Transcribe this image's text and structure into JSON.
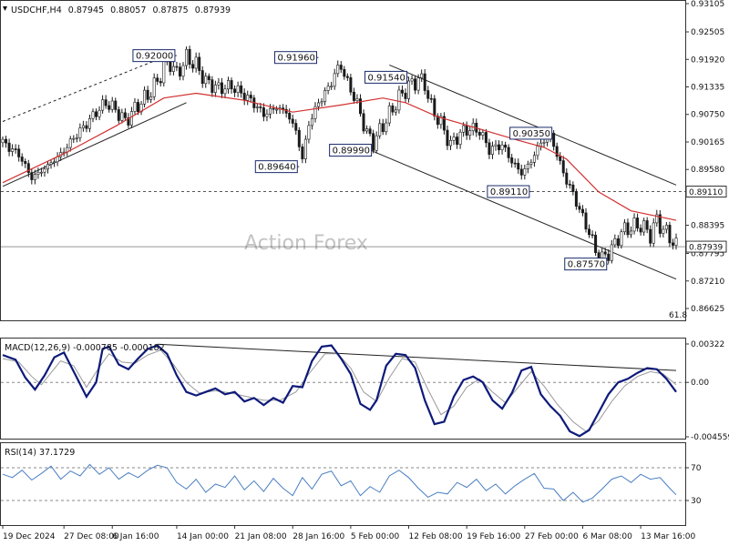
{
  "chart_data": {
    "type": "candlestick",
    "price_panel": {
      "header": {
        "symbol": "USDCHF,H4",
        "open": "0.87945",
        "high": "0.88057",
        "low": "0.87875",
        "close": "0.87939"
      },
      "watermark": "Action Forex",
      "ylim": [
        0.86625,
        0.93105
      ],
      "y_ticks": [
        "0.93105",
        "0.92505",
        "0.91920",
        "0.91335",
        "0.90750",
        "0.90165",
        "0.89580",
        "0.88395",
        "0.87795",
        "0.87210",
        "0.86625"
      ],
      "price_tags": [
        {
          "label": "0.89110",
          "value": 0.8911,
          "style": "dashed"
        },
        {
          "label": "0.87939",
          "value": 0.87939,
          "style": "solid"
        }
      ],
      "fib_label": "61.8",
      "callouts": [
        {
          "label": "0.92000",
          "value": 0.92
        },
        {
          "label": "0.91960",
          "value": 0.9196
        },
        {
          "label": "0.91540",
          "value": 0.9154
        },
        {
          "label": "0.89640",
          "value": 0.8964
        },
        {
          "label": "0.89990",
          "value": 0.8999
        },
        {
          "label": "0.90350",
          "value": 0.9035
        },
        {
          "label": "0.89110",
          "value": 0.8911
        },
        {
          "label": "0.87570",
          "value": 0.8757
        }
      ],
      "close_path": [
        [
          0,
          0.9015
        ],
        [
          5,
          0.899
        ],
        [
          9,
          0.894
        ],
        [
          13,
          0.896
        ],
        [
          18,
          0.899
        ],
        [
          22,
          0.9025
        ],
        [
          26,
          0.9055
        ],
        [
          29,
          0.908
        ],
        [
          32,
          0.91
        ],
        [
          35,
          0.9085
        ],
        [
          38,
          0.906
        ],
        [
          42,
          0.9095
        ],
        [
          45,
          0.9115
        ],
        [
          48,
          0.9145
        ],
        [
          50,
          0.9175
        ],
        [
          52,
          0.9185
        ],
        [
          54,
          0.916
        ],
        [
          57,
          0.9195
        ],
        [
          60,
          0.918
        ],
        [
          63,
          0.9145
        ],
        [
          67,
          0.913
        ],
        [
          71,
          0.9135
        ],
        [
          74,
          0.912
        ],
        [
          77,
          0.9105
        ],
        [
          81,
          0.9075
        ],
        [
          85,
          0.909
        ],
        [
          88,
          0.908
        ],
        [
          91,
          0.904
        ],
        [
          93,
          0.898
        ],
        [
          95,
          0.9055
        ],
        [
          98,
          0.91
        ],
        [
          101,
          0.913
        ],
        [
          103,
          0.916
        ],
        [
          105,
          0.918
        ],
        [
          107,
          0.914
        ],
        [
          109,
          0.9115
        ],
        [
          111,
          0.9075
        ],
        [
          113,
          0.9035
        ],
        [
          115,
          0.9015
        ],
        [
          117,
          0.904
        ],
        [
          120,
          0.9075
        ],
        [
          123,
          0.911
        ],
        [
          126,
          0.9135
        ],
        [
          129,
          0.915
        ],
        [
          131,
          0.914
        ],
        [
          133,
          0.909
        ],
        [
          136,
          0.9055
        ],
        [
          139,
          0.901
        ],
        [
          142,
          0.9035
        ],
        [
          145,
          0.9045
        ],
        [
          148,
          0.904
        ],
        [
          151,
          0.9
        ],
        [
          155,
          0.901
        ],
        [
          158,
          0.8975
        ],
        [
          161,
          0.895
        ],
        [
          164,
          0.8975
        ],
        [
          166,
          0.9005
        ],
        [
          168,
          0.902
        ],
        [
          170,
          0.903
        ],
        [
          172,
          0.899
        ],
        [
          174,
          0.895
        ],
        [
          176,
          0.892
        ],
        [
          178,
          0.889
        ],
        [
          180,
          0.8855
        ],
        [
          182,
          0.8825
        ],
        [
          184,
          0.8785
        ],
        [
          186,
          0.877
        ],
        [
          188,
          0.878
        ],
        [
          190,
          0.88
        ],
        [
          192,
          0.8825
        ],
        [
          195,
          0.8835
        ],
        [
          198,
          0.884
        ],
        [
          201,
          0.882
        ],
        [
          203,
          0.885
        ],
        [
          205,
          0.883
        ],
        [
          207,
          0.8815
        ],
        [
          209,
          0.8794
        ]
      ],
      "ema55": [
        [
          0,
          0.893
        ],
        [
          20,
          0.8995
        ],
        [
          35,
          0.905
        ],
        [
          50,
          0.911
        ],
        [
          60,
          0.912
        ],
        [
          75,
          0.9105
        ],
        [
          90,
          0.908
        ],
        [
          105,
          0.9095
        ],
        [
          118,
          0.911
        ],
        [
          125,
          0.91
        ],
        [
          135,
          0.907
        ],
        [
          150,
          0.904
        ],
        [
          160,
          0.902
        ],
        [
          168,
          0.9005
        ],
        [
          175,
          0.898
        ],
        [
          185,
          0.891
        ],
        [
          195,
          0.887
        ],
        [
          209,
          0.885
        ]
      ]
    },
    "macd_panel": {
      "header": "MACD(12,26,9) -0.000785 -0.000182",
      "ylim": [
        -0.004559,
        0.00322
      ],
      "y_ticks": [
        "0.00322",
        "0.00",
        "-0.004559"
      ],
      "macd": [
        [
          0,
          0.0023
        ],
        [
          4,
          0.0019
        ],
        [
          7,
          0.0004
        ],
        [
          10,
          -0.0006
        ],
        [
          13,
          0.0006
        ],
        [
          16,
          0.0021
        ],
        [
          19,
          0.0025
        ],
        [
          23,
          0.0004
        ],
        [
          26,
          -0.0012
        ],
        [
          29,
          0.0
        ],
        [
          31,
          0.0028
        ],
        [
          33,
          0.003
        ],
        [
          36,
          0.0015
        ],
        [
          39,
          0.0011
        ],
        [
          42,
          0.002
        ],
        [
          45,
          0.0028
        ],
        [
          48,
          0.0031
        ],
        [
          51,
          0.0024
        ],
        [
          54,
          0.0006
        ],
        [
          57,
          -0.0008
        ],
        [
          60,
          -0.0011
        ],
        [
          63,
          -0.0008
        ],
        [
          66,
          -0.0005
        ],
        [
          69,
          -0.001
        ],
        [
          72,
          -0.0008
        ],
        [
          75,
          -0.0016
        ],
        [
          78,
          -0.0013
        ],
        [
          81,
          -0.0019
        ],
        [
          84,
          -0.0013
        ],
        [
          87,
          -0.0017
        ],
        [
          90,
          -0.0003
        ],
        [
          93,
          -0.0004
        ],
        [
          96,
          0.0018
        ],
        [
          99,
          0.003
        ],
        [
          102,
          0.0031
        ],
        [
          105,
          0.002
        ],
        [
          108,
          0.0007
        ],
        [
          111,
          -0.0018
        ],
        [
          114,
          -0.0023
        ],
        [
          116,
          -0.0015
        ],
        [
          119,
          0.0014
        ],
        [
          122,
          0.0024
        ],
        [
          125,
          0.0023
        ],
        [
          128,
          0.0012
        ],
        [
          131,
          -0.0015
        ],
        [
          134,
          -0.0035
        ],
        [
          137,
          -0.0033
        ],
        [
          140,
          -0.0012
        ],
        [
          143,
          0.0002
        ],
        [
          146,
          0.0005
        ],
        [
          149,
          0.0
        ],
        [
          152,
          -0.0015
        ],
        [
          155,
          -0.0022
        ],
        [
          158,
          -0.0009
        ],
        [
          161,
          0.001
        ],
        [
          164,
          0.0013
        ],
        [
          167,
          -0.001
        ],
        [
          170,
          -0.002
        ],
        [
          173,
          -0.0028
        ],
        [
          176,
          -0.0041
        ],
        [
          179,
          -0.0045
        ],
        [
          182,
          -0.004
        ],
        [
          185,
          -0.0025
        ],
        [
          188,
          -0.001
        ],
        [
          191,
          0.0
        ],
        [
          194,
          0.0003
        ],
        [
          197,
          0.0008
        ],
        [
          200,
          0.0012
        ],
        [
          203,
          0.0011
        ],
        [
          206,
          0.0003
        ],
        [
          209,
          -0.0008
        ]
      ],
      "signal": [
        [
          0,
          0.002
        ],
        [
          5,
          0.0017
        ],
        [
          9,
          0.0005
        ],
        [
          12,
          -0.0002
        ],
        [
          15,
          0.0008
        ],
        [
          18,
          0.0018
        ],
        [
          22,
          0.0014
        ],
        [
          26,
          -0.0004
        ],
        [
          30,
          0.0013
        ],
        [
          33,
          0.0024
        ],
        [
          37,
          0.0017
        ],
        [
          41,
          0.0016
        ],
        [
          45,
          0.0023
        ],
        [
          49,
          0.0027
        ],
        [
          53,
          0.0015
        ],
        [
          57,
          0.0
        ],
        [
          61,
          -0.0009
        ],
        [
          66,
          -0.0007
        ],
        [
          71,
          -0.0009
        ],
        [
          76,
          -0.0012
        ],
        [
          81,
          -0.0015
        ],
        [
          86,
          -0.0015
        ],
        [
          91,
          -0.0008
        ],
        [
          95,
          0.0007
        ],
        [
          100,
          0.0024
        ],
        [
          104,
          0.0024
        ],
        [
          108,
          0.0012
        ],
        [
          112,
          -0.0008
        ],
        [
          116,
          -0.0016
        ],
        [
          120,
          0.0004
        ],
        [
          124,
          0.002
        ],
        [
          128,
          0.0017
        ],
        [
          132,
          -0.0006
        ],
        [
          136,
          -0.0027
        ],
        [
          140,
          -0.002
        ],
        [
          144,
          -0.0004
        ],
        [
          148,
          0.0003
        ],
        [
          152,
          -0.0008
        ],
        [
          156,
          -0.0017
        ],
        [
          160,
          -0.0004
        ],
        [
          164,
          0.0009
        ],
        [
          168,
          -0.0003
        ],
        [
          172,
          -0.0018
        ],
        [
          177,
          -0.0033
        ],
        [
          181,
          -0.0041
        ],
        [
          185,
          -0.0032
        ],
        [
          189,
          -0.0016
        ],
        [
          193,
          -0.0003
        ],
        [
          197,
          0.0005
        ],
        [
          201,
          0.0009
        ],
        [
          205,
          0.0007
        ],
        [
          209,
          -0.0002
        ]
      ]
    },
    "rsi_panel": {
      "header": "RSI(14) 37.1729",
      "ylim": [
        0,
        100
      ],
      "y_ticks": [
        "70",
        "30"
      ],
      "rsi": [
        [
          0,
          62
        ],
        [
          3,
          58
        ],
        [
          6,
          67
        ],
        [
          9,
          55
        ],
        [
          12,
          63
        ],
        [
          15,
          72
        ],
        [
          18,
          56
        ],
        [
          21,
          66
        ],
        [
          24,
          60
        ],
        [
          27,
          74
        ],
        [
          30,
          62
        ],
        [
          33,
          70
        ],
        [
          36,
          56
        ],
        [
          39,
          64
        ],
        [
          42,
          58
        ],
        [
          45,
          67
        ],
        [
          48,
          73
        ],
        [
          51,
          70
        ],
        [
          54,
          52
        ],
        [
          57,
          44
        ],
        [
          60,
          56
        ],
        [
          63,
          40
        ],
        [
          66,
          50
        ],
        [
          69,
          46
        ],
        [
          72,
          60
        ],
        [
          75,
          43
        ],
        [
          78,
          54
        ],
        [
          81,
          41
        ],
        [
          84,
          57
        ],
        [
          87,
          45
        ],
        [
          90,
          36
        ],
        [
          93,
          58
        ],
        [
          96,
          44
        ],
        [
          99,
          62
        ],
        [
          102,
          66
        ],
        [
          105,
          48
        ],
        [
          108,
          54
        ],
        [
          111,
          36
        ],
        [
          114,
          47
        ],
        [
          117,
          40
        ],
        [
          120,
          60
        ],
        [
          123,
          67
        ],
        [
          126,
          58
        ],
        [
          129,
          45
        ],
        [
          132,
          34
        ],
        [
          135,
          40
        ],
        [
          138,
          38
        ],
        [
          141,
          52
        ],
        [
          144,
          46
        ],
        [
          147,
          56
        ],
        [
          150,
          42
        ],
        [
          153,
          50
        ],
        [
          156,
          38
        ],
        [
          159,
          48
        ],
        [
          162,
          56
        ],
        [
          165,
          63
        ],
        [
          168,
          45
        ],
        [
          171,
          44
        ],
        [
          174,
          30
        ],
        [
          177,
          40
        ],
        [
          180,
          28
        ],
        [
          183,
          33
        ],
        [
          186,
          44
        ],
        [
          189,
          56
        ],
        [
          192,
          60
        ],
        [
          195,
          52
        ],
        [
          198,
          62
        ],
        [
          201,
          56
        ],
        [
          204,
          58
        ],
        [
          207,
          45
        ],
        [
          209,
          37
        ]
      ]
    },
    "x_ticks": [
      {
        "label": "19 Dec 2024",
        "i": 0
      },
      {
        "label": "27 Dec 08:00",
        "i": 19
      },
      {
        "label": "6 Jan 16:00",
        "i": 34
      },
      {
        "label": "14 Jan 00:00",
        "i": 54
      },
      {
        "label": "21 Jan 08:00",
        "i": 72
      },
      {
        "label": "28 Jan 16:00",
        "i": 90
      },
      {
        "label": "5 Feb 00:00",
        "i": 108
      },
      {
        "label": "12 Feb 08:00",
        "i": 126
      },
      {
        "label": "19 Feb 16:00",
        "i": 144
      },
      {
        "label": "27 Feb 00:00",
        "i": 162
      },
      {
        "label": "6 Mar 08:00",
        "i": 180
      },
      {
        "label": "13 Mar 16:00",
        "i": 198
      }
    ],
    "colors": {
      "candle": "#1a1a1a",
      "ema": "#d23030",
      "macd": "#0d1a7a",
      "signal": "#9a9a9a",
      "rsi": "#4a7fc1"
    }
  }
}
